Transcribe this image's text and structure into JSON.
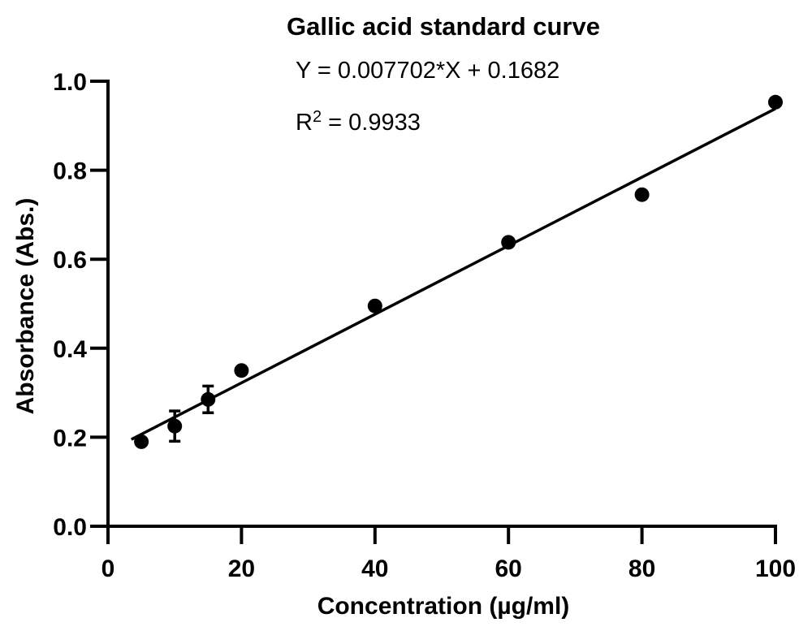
{
  "chart_data": {
    "type": "scatter",
    "title": "Gallic acid standard curve",
    "equation_label": "Y = 0.007702*X + 0.1682",
    "r_squared": {
      "base": "R",
      "exponent": "2",
      "value_label": " = 0.9933",
      "value": 0.9933
    },
    "xlabel": "Concentration (µg/ml)",
    "ylabel": "Absorbance (Abs.)",
    "xlim": [
      0,
      100
    ],
    "ylim": [
      0,
      1.0
    ],
    "grid": false,
    "legend": "none",
    "ink_color": "#000000",
    "background_color": "#ffffff",
    "x_ticks": [
      {
        "value": 0,
        "label": "0"
      },
      {
        "value": 20,
        "label": "20"
      },
      {
        "value": 40,
        "label": "40"
      },
      {
        "value": 60,
        "label": "60"
      },
      {
        "value": 80,
        "label": "80"
      },
      {
        "value": 100,
        "label": "100"
      }
    ],
    "y_ticks": [
      {
        "value": 0.0,
        "label": "0.0"
      },
      {
        "value": 0.2,
        "label": "0.2"
      },
      {
        "value": 0.4,
        "label": "0.4"
      },
      {
        "value": 0.6,
        "label": "0.6"
      },
      {
        "value": 0.8,
        "label": "0.8"
      },
      {
        "value": 1.0,
        "label": "1.0"
      }
    ],
    "points": [
      {
        "x": 5,
        "y": 0.19
      },
      {
        "x": 10,
        "y": 0.225,
        "error": 0.034
      },
      {
        "x": 15,
        "y": 0.285,
        "error": 0.03
      },
      {
        "x": 20,
        "y": 0.35
      },
      {
        "x": 40,
        "y": 0.495
      },
      {
        "x": 60,
        "y": 0.638
      },
      {
        "x": 80,
        "y": 0.745
      },
      {
        "x": 100,
        "y": 0.953
      }
    ],
    "fit_line": {
      "slope": 0.007702,
      "intercept": 0.1682,
      "x_start": 3.5,
      "x_end": 100
    }
  }
}
